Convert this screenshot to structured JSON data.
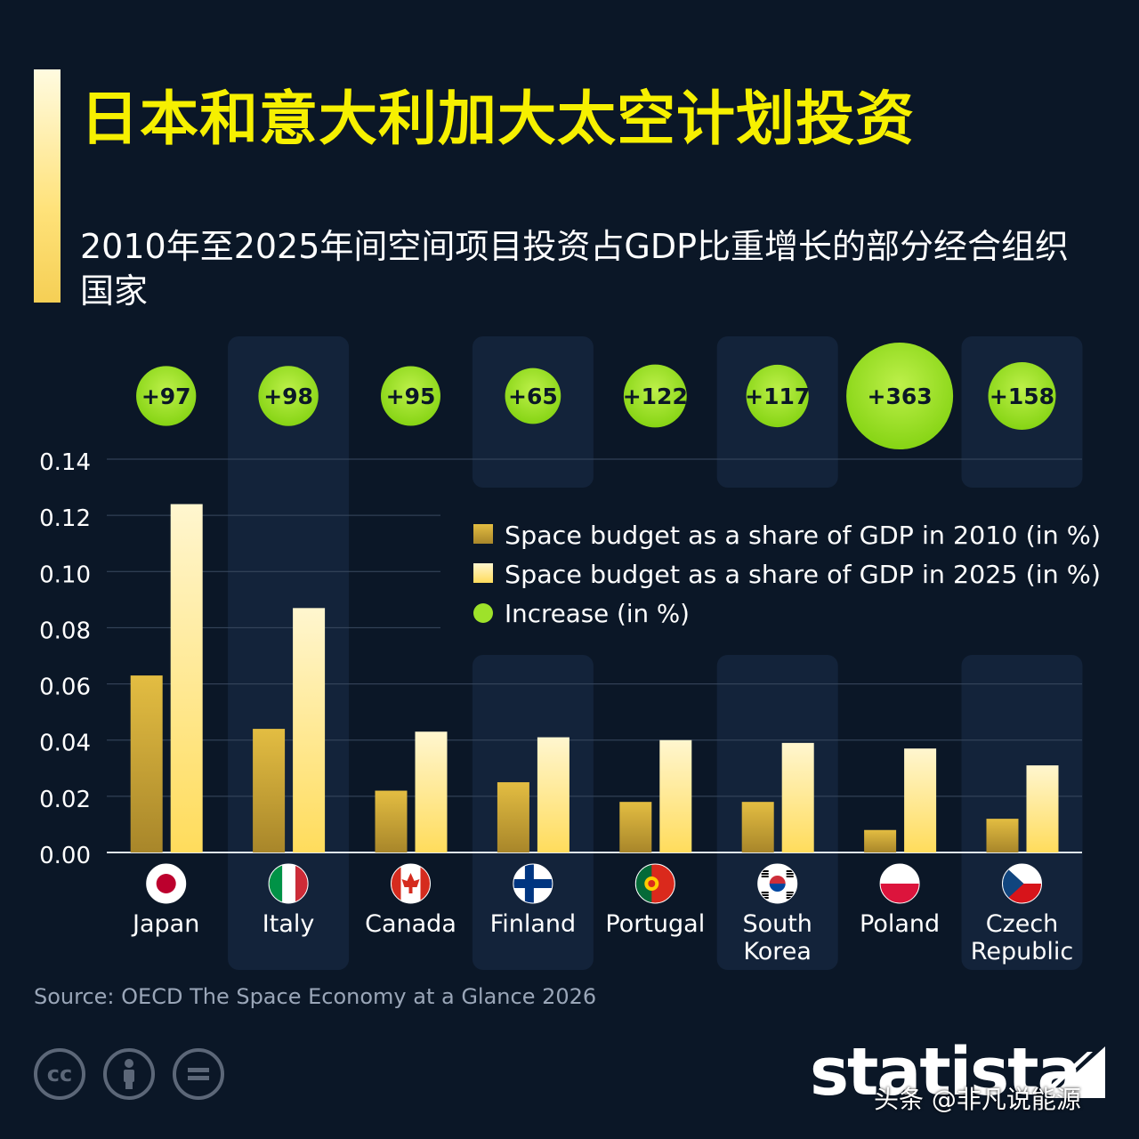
{
  "header": {
    "title": "日本和意大利加大太空计划投资",
    "subtitle": "2010年至2025年间空间项目投资占GDP比重增长的部分经合组织国家"
  },
  "colors": {
    "background": "#0b1727",
    "title": "#f6f000",
    "bar_2010": "#d9b33a",
    "bar_2025": "#ffe98a",
    "bubble": "#9ee22a",
    "column_band": "#13233a"
  },
  "chart_data": {
    "type": "bar",
    "categories": [
      "Japan",
      "Italy",
      "Canada",
      "Finland",
      "Portugal",
      "South Korea",
      "Poland",
      "Czech Republic"
    ],
    "category_lines": [
      [
        "Japan"
      ],
      [
        "Italy"
      ],
      [
        "Canada"
      ],
      [
        "Finland"
      ],
      [
        "Portugal"
      ],
      [
        "South",
        "Korea"
      ],
      [
        "Poland"
      ],
      [
        "Czech",
        "Republic"
      ]
    ],
    "series": [
      {
        "name": "Space budget as a share of GDP in 2010 (in %)",
        "values": [
          0.063,
          0.044,
          0.022,
          0.025,
          0.018,
          0.018,
          0.008,
          0.012
        ]
      },
      {
        "name": "Space budget as a share of GDP in 2025 (in %)",
        "values": [
          0.124,
          0.087,
          0.043,
          0.041,
          0.04,
          0.039,
          0.037,
          0.031
        ]
      }
    ],
    "increase": {
      "name": "Increase (in %)",
      "values": [
        97,
        98,
        95,
        65,
        122,
        117,
        363,
        158
      ],
      "labels": [
        "+97",
        "+98",
        "+95",
        "+65",
        "+122",
        "+117",
        "+363",
        "+158"
      ]
    },
    "y_ticks": [
      "0.00",
      "0.02",
      "0.04",
      "0.06",
      "0.08",
      "0.10",
      "0.12",
      "0.14"
    ],
    "ylim": [
      0,
      0.14
    ],
    "grid": true,
    "legend_position": "top-right",
    "flags": [
      "japan-flag-icon",
      "italy-flag-icon",
      "canada-flag-icon",
      "finland-flag-icon",
      "portugal-flag-icon",
      "south-korea-flag-icon",
      "poland-flag-icon",
      "czech-flag-icon"
    ]
  },
  "footer": {
    "source": "Source: OECD The Space Economy at a Glance 2026",
    "license_icons": [
      "cc-icon",
      "attribution-icon",
      "no-derivatives-icon"
    ],
    "brand": "statista",
    "watermark": "头条 @非凡说能源"
  }
}
